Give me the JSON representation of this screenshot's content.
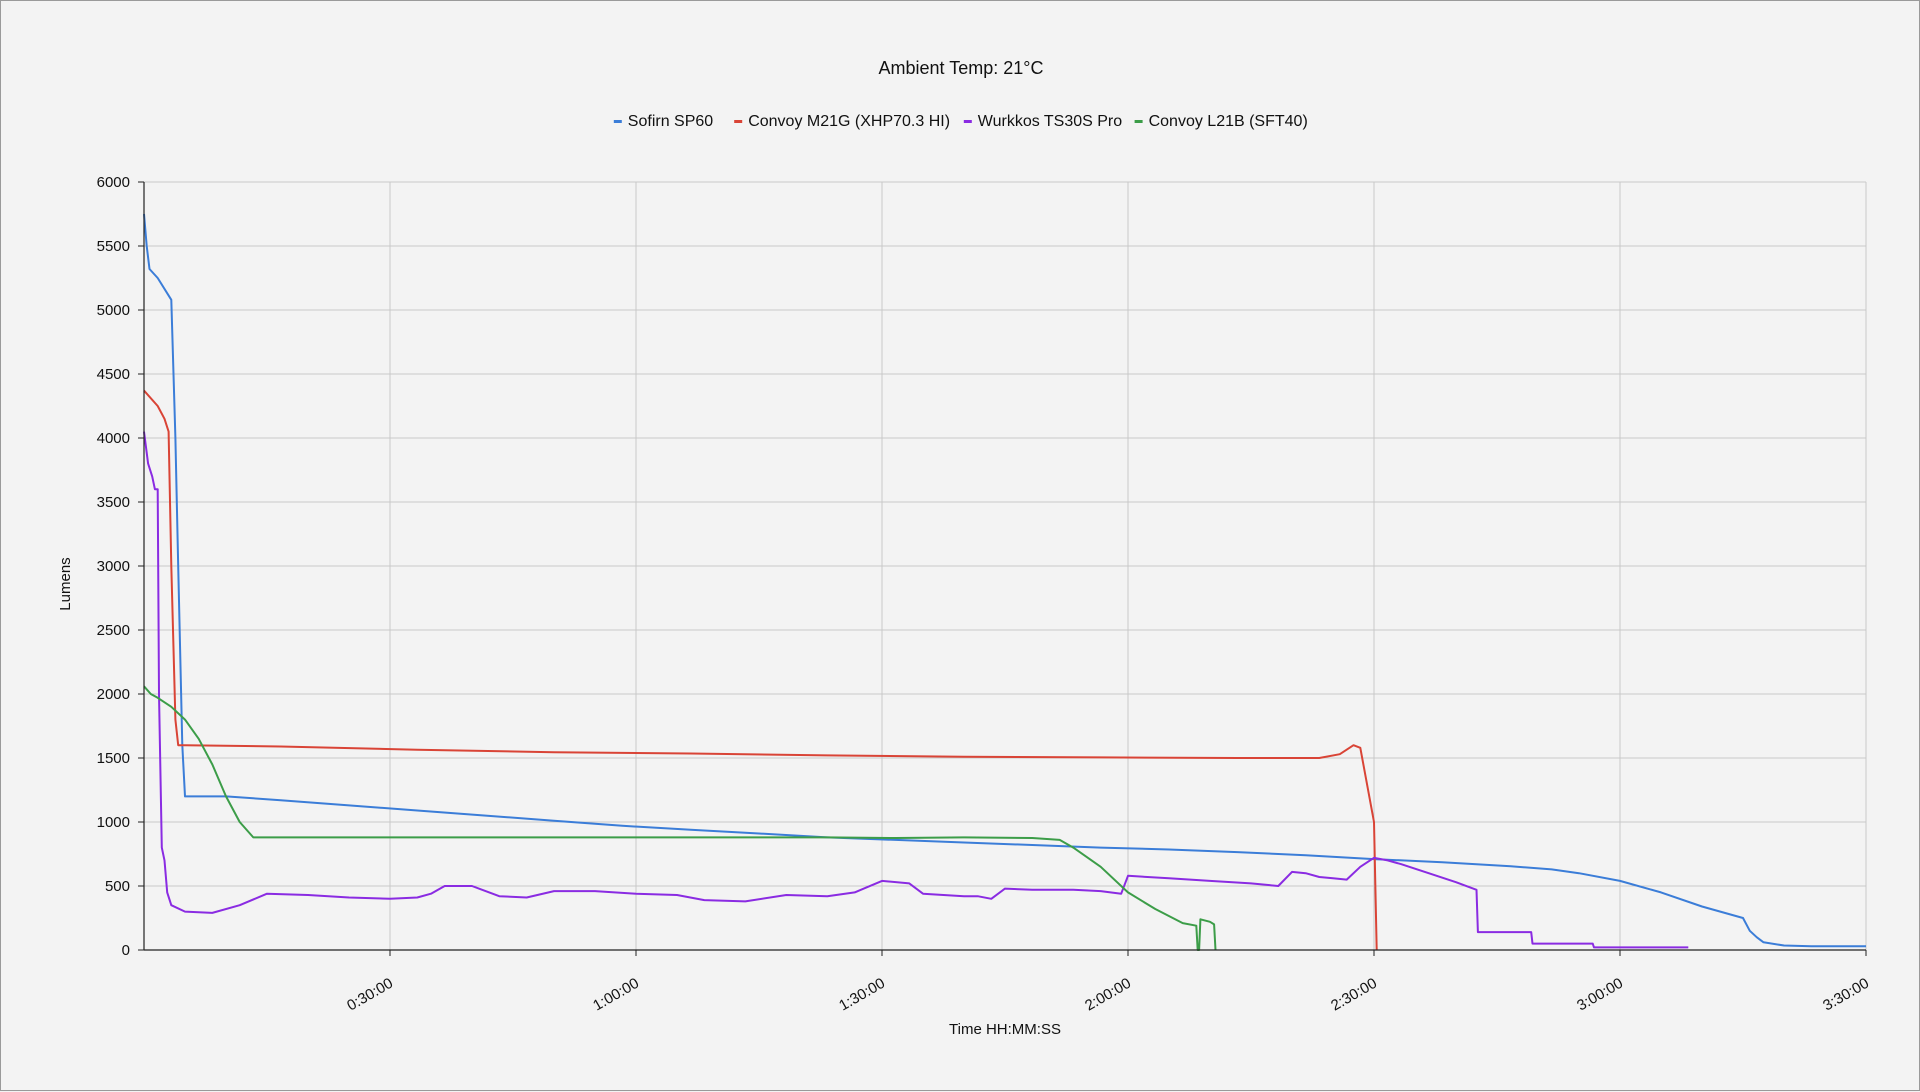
{
  "chart_data": {
    "type": "line",
    "title": "Ambient Temp: 21°C",
    "xlabel": "Time HH:MM:SS",
    "ylabel": "Lumens",
    "xlim": [
      0,
      12600
    ],
    "ylim": [
      0,
      6000
    ],
    "grid": true,
    "legend_position": "top",
    "y_ticks": [
      0,
      500,
      1000,
      1500,
      2000,
      2500,
      3000,
      3500,
      4000,
      4500,
      5000,
      5500,
      6000
    ],
    "x_ticks": [
      {
        "value": 1800,
        "label": "0:30:00"
      },
      {
        "value": 3600,
        "label": "1:00:00"
      },
      {
        "value": 5400,
        "label": "1:30:00"
      },
      {
        "value": 7200,
        "label": "2:00:00"
      },
      {
        "value": 9000,
        "label": "2:30:00"
      },
      {
        "value": 10800,
        "label": "3:00:00"
      },
      {
        "value": 12600,
        "label": "3:30:00"
      }
    ],
    "series": [
      {
        "name": "Sofirn SP60",
        "color": "#3b7dd8",
        "points": [
          [
            0,
            5750
          ],
          [
            20,
            5500
          ],
          [
            40,
            5320
          ],
          [
            100,
            5250
          ],
          [
            200,
            5080
          ],
          [
            230,
            4000
          ],
          [
            250,
            3000
          ],
          [
            280,
            1600
          ],
          [
            300,
            1200
          ],
          [
            600,
            1200
          ],
          [
            1000,
            1170
          ],
          [
            1500,
            1130
          ],
          [
            2000,
            1090
          ],
          [
            2500,
            1050
          ],
          [
            3000,
            1010
          ],
          [
            3500,
            970
          ],
          [
            4000,
            940
          ],
          [
            4500,
            910
          ],
          [
            5000,
            880
          ],
          [
            5500,
            860
          ],
          [
            6000,
            840
          ],
          [
            6500,
            820
          ],
          [
            7000,
            800
          ],
          [
            7500,
            785
          ],
          [
            8000,
            765
          ],
          [
            8500,
            740
          ],
          [
            9000,
            710
          ],
          [
            9500,
            685
          ],
          [
            10000,
            655
          ],
          [
            10300,
            630
          ],
          [
            10500,
            600
          ],
          [
            10800,
            540
          ],
          [
            11100,
            450
          ],
          [
            11400,
            340
          ],
          [
            11700,
            250
          ],
          [
            11750,
            150
          ],
          [
            11800,
            100
          ],
          [
            11850,
            60
          ],
          [
            12000,
            35
          ],
          [
            12200,
            30
          ],
          [
            12600,
            30
          ]
        ]
      },
      {
        "name": "Convoy M21G (XHP70.3 HI)",
        "color": "#d94436",
        "points": [
          [
            0,
            4370
          ],
          [
            100,
            4250
          ],
          [
            150,
            4150
          ],
          [
            180,
            4050
          ],
          [
            200,
            3000
          ],
          [
            230,
            1800
          ],
          [
            250,
            1600
          ],
          [
            300,
            1600
          ],
          [
            1000,
            1590
          ],
          [
            2000,
            1565
          ],
          [
            3000,
            1545
          ],
          [
            4000,
            1535
          ],
          [
            5000,
            1520
          ],
          [
            6000,
            1510
          ],
          [
            7000,
            1505
          ],
          [
            8000,
            1500
          ],
          [
            8600,
            1500
          ],
          [
            8750,
            1530
          ],
          [
            8850,
            1600
          ],
          [
            8900,
            1580
          ],
          [
            9000,
            1000
          ],
          [
            9020,
            0
          ]
        ]
      },
      {
        "name": "Wurkkos TS30S Pro",
        "color": "#8a2be2",
        "points": [
          [
            0,
            4050
          ],
          [
            30,
            3800
          ],
          [
            60,
            3700
          ],
          [
            80,
            3600
          ],
          [
            100,
            3600
          ],
          [
            110,
            2000
          ],
          [
            130,
            800
          ],
          [
            150,
            700
          ],
          [
            170,
            450
          ],
          [
            200,
            350
          ],
          [
            300,
            300
          ],
          [
            500,
            290
          ],
          [
            700,
            350
          ],
          [
            900,
            440
          ],
          [
            1200,
            430
          ],
          [
            1500,
            410
          ],
          [
            1800,
            400
          ],
          [
            2000,
            410
          ],
          [
            2100,
            440
          ],
          [
            2200,
            500
          ],
          [
            2400,
            500
          ],
          [
            2600,
            420
          ],
          [
            2800,
            410
          ],
          [
            3000,
            460
          ],
          [
            3300,
            460
          ],
          [
            3600,
            440
          ],
          [
            3900,
            430
          ],
          [
            4100,
            390
          ],
          [
            4400,
            380
          ],
          [
            4700,
            430
          ],
          [
            5000,
            420
          ],
          [
            5200,
            450
          ],
          [
            5400,
            540
          ],
          [
            5600,
            520
          ],
          [
            5700,
            440
          ],
          [
            6000,
            420
          ],
          [
            6100,
            420
          ],
          [
            6200,
            400
          ],
          [
            6300,
            480
          ],
          [
            6500,
            470
          ],
          [
            6800,
            470
          ],
          [
            7000,
            460
          ],
          [
            7150,
            440
          ],
          [
            7200,
            580
          ],
          [
            7500,
            560
          ],
          [
            7800,
            540
          ],
          [
            8100,
            520
          ],
          [
            8300,
            500
          ],
          [
            8400,
            610
          ],
          [
            8500,
            600
          ],
          [
            8600,
            570
          ],
          [
            8700,
            560
          ],
          [
            8800,
            550
          ],
          [
            8900,
            650
          ],
          [
            9000,
            720
          ],
          [
            9100,
            700
          ],
          [
            9200,
            670
          ],
          [
            9400,
            600
          ],
          [
            9600,
            530
          ],
          [
            9750,
            470
          ],
          [
            9760,
            140
          ],
          [
            10150,
            140
          ],
          [
            10160,
            50
          ],
          [
            10600,
            50
          ],
          [
            10610,
            20
          ],
          [
            11300,
            20
          ]
        ]
      },
      {
        "name": "Convoy L21B (SFT40)",
        "color": "#3c9d48",
        "points": [
          [
            0,
            2060
          ],
          [
            50,
            2000
          ],
          [
            100,
            1970
          ],
          [
            200,
            1900
          ],
          [
            300,
            1800
          ],
          [
            400,
            1650
          ],
          [
            500,
            1450
          ],
          [
            600,
            1200
          ],
          [
            700,
            1000
          ],
          [
            800,
            880
          ],
          [
            1000,
            880
          ],
          [
            2000,
            880
          ],
          [
            3000,
            880
          ],
          [
            4000,
            880
          ],
          [
            5000,
            880
          ],
          [
            5500,
            875
          ],
          [
            6000,
            880
          ],
          [
            6500,
            875
          ],
          [
            6700,
            860
          ],
          [
            6800,
            800
          ],
          [
            7000,
            650
          ],
          [
            7200,
            450
          ],
          [
            7400,
            320
          ],
          [
            7600,
            210
          ],
          [
            7700,
            190
          ],
          [
            7710,
            0
          ],
          [
            7720,
            0
          ],
          [
            7730,
            240
          ],
          [
            7800,
            220
          ],
          [
            7830,
            200
          ],
          [
            7840,
            0
          ]
        ]
      }
    ]
  }
}
